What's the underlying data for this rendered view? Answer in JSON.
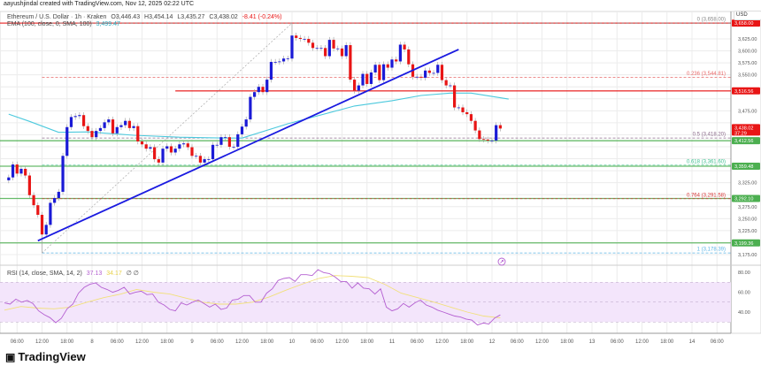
{
  "header": {
    "credit": "aayushjindal created with TradingView.com, Nov 12, 2025 02:22 UTC"
  },
  "legend": {
    "symbol": "Ethereum / U.S. Dollar · 1h · Kraken",
    "open": "O3,446.43",
    "high": "H3,454.14",
    "low": "L3,435.27",
    "close": "C3,438.02",
    "change": "-8.41 (-0.24%)",
    "ema_label": "EMA (100, close, 0, SMA, 100)",
    "ema_value": "3,499.47",
    "rsi_label": "RSI (14, close, SMA, 14, 2)",
    "rsi_value": "37.13",
    "rsi_sma_value": "34.17",
    "rsi_extra": "∅ ∅"
  },
  "currency": "USD",
  "brand": {
    "name": "TradingView",
    "logo": "tradingview-logo"
  },
  "colors": {
    "up": "#1a1ad6",
    "down": "#e81515",
    "ema": "#4cc9dd",
    "trendline": "#1a1ae0",
    "resistance": "#e81515",
    "support": "#4caf50",
    "rsi": "#b45fd1",
    "rsi_sma": "#f2e07a",
    "rsi_band": "#f3e5fb"
  },
  "chart_data": {
    "type": "candlestick",
    "interval": "1h",
    "first_candle": "2025-11-07 04:00",
    "closes": [
      3336,
      3363,
      3344,
      3354,
      3340,
      3299,
      3278,
      3258,
      3217,
      3237,
      3283,
      3293,
      3306,
      3381,
      3441,
      3462,
      3464,
      3466,
      3443,
      3433,
      3420,
      3433,
      3439,
      3451,
      3457,
      3428,
      3441,
      3445,
      3454,
      3439,
      3443,
      3411,
      3405,
      3396,
      3399,
      3374,
      3367,
      3396,
      3401,
      3388,
      3396,
      3405,
      3407,
      3399,
      3381,
      3381,
      3367,
      3374,
      3374,
      3404,
      3404,
      3420,
      3420,
      3400,
      3400,
      3426,
      3442,
      3457,
      3504,
      3514,
      3525,
      3514,
      3540,
      3577,
      3577,
      3578,
      3584,
      3584,
      3632,
      3627,
      3625,
      3625,
      3617,
      3606,
      3606,
      3606,
      3589,
      3623,
      3605,
      3605,
      3589,
      3612,
      3540,
      3517,
      3528,
      3552,
      3531,
      3555,
      3571,
      3539,
      3572,
      3565,
      3582,
      3578,
      3613,
      3603,
      3572,
      3546,
      3546,
      3544,
      3559,
      3554,
      3554,
      3571,
      3539,
      3528,
      3528,
      3482,
      3482,
      3472,
      3468,
      3454,
      3434,
      3416,
      3415,
      3413,
      3413,
      3445,
      3438.02
    ],
    "first_open": 3330,
    "extremes": [
      {
        "time": "2025-11-07 12:00",
        "low": 3178.39
      },
      {
        "time": "2025-11-10 00:00",
        "high": 3658.0
      }
    ],
    "ema100": [
      [
        "2025-11-07 04:00",
        3468
      ],
      [
        "2025-11-07 09:00",
        3453
      ],
      [
        "2025-11-07 16:00",
        3430
      ],
      [
        "2025-11-07 23:00",
        3431
      ],
      [
        "2025-11-08 10:00",
        3424
      ],
      [
        "2025-11-08 21:00",
        3420
      ],
      [
        "2025-11-09 08:00",
        3418
      ],
      [
        "2025-11-09 12:00",
        3418
      ],
      [
        "2025-11-09 23:00",
        3448
      ],
      [
        "2025-11-10 15:00",
        3485
      ],
      [
        "2025-11-11 00:00",
        3496
      ],
      [
        "2025-11-11 07:00",
        3507
      ],
      [
        "2025-11-11 14:00",
        3512
      ],
      [
        "2025-11-11 19:00",
        3512
      ],
      [
        "2025-11-12 04:00",
        3499.47
      ]
    ],
    "trendline": {
      "from": [
        "2025-11-07 11:00",
        3204
      ],
      "to": [
        "2025-11-11 16:00",
        3603
      ]
    },
    "fib_anchor_line": {
      "from": [
        "2025-11-07 12:00",
        3178.39
      ],
      "to": [
        "2025-11-10 00:00",
        3658.0
      ]
    },
    "fib_levels": [
      {
        "label": "0 (3,658.00)",
        "price": 3658.0,
        "color": "#888888"
      },
      {
        "label": "0.236 (3,544.81)",
        "price": 3544.81,
        "color": "#e86a6a"
      },
      {
        "label": "0.5 (3,418.20)",
        "price": 3418.2,
        "color": "#8a6a8a"
      },
      {
        "label": "0.618 (3,361.60)",
        "price": 3361.6,
        "color": "#3cbf8f"
      },
      {
        "label": "0.764 (3,291.58)",
        "price": 3291.58,
        "color": "#d93a3a"
      },
      {
        "label": "1 (3,178.39)",
        "price": 3178.39,
        "color": "#5ab4e6"
      }
    ],
    "horizontal_lines": [
      {
        "price": 3658.0,
        "label": "3,658.00",
        "color": "#e81515",
        "from": "2025-11-07 00:00"
      },
      {
        "price": 3516.56,
        "label": "3,516.56",
        "color": "#e81515",
        "from": "2025-11-08 20:00"
      },
      {
        "price": 3412.56,
        "label": "3,412.56",
        "color": "#4caf50",
        "from": "2025-11-07 00:00"
      },
      {
        "price": 3359.48,
        "label": "3,359.48",
        "color": "#4caf50",
        "from": "2025-11-07 00:00"
      },
      {
        "price": 3292.1,
        "label": "3,292.10",
        "color": "#4caf50",
        "from": "2025-11-07 00:00"
      },
      {
        "price": 3199.36,
        "label": "3,199.36",
        "color": "#4caf50",
        "from": "2025-11-07 00:00"
      }
    ],
    "last_price": {
      "label": "3,438.02",
      "countdown": "37:29",
      "price": 3438.02
    },
    "y_ticks": [
      "3,625.00",
      "3,600.00",
      "3,575.00",
      "3,550.00",
      "3,525.00",
      "3,500.00",
      "3,475.00",
      "3,450.00",
      "3,425.00",
      "3,400.00",
      "3,375.00",
      "3,350.00",
      "3,325.00",
      "3,300.00",
      "3,275.00",
      "3,250.00",
      "3,225.00",
      "3,200.00",
      "3,175.00"
    ],
    "ylim": [
      3150,
      3680
    ],
    "x_ticks": [
      "06:00",
      "12:00",
      "18:00",
      "8",
      "06:00",
      "12:00",
      "18:00",
      "9",
      "06:00",
      "12:00",
      "18:00",
      "10",
      "06:00",
      "12:00",
      "18:00",
      "11",
      "06:00",
      "12:00",
      "18:00",
      "12",
      "06:00",
      "12:00",
      "18:00",
      "13",
      "06:00",
      "12:00",
      "18:00",
      "14",
      "06:00"
    ],
    "rsi": {
      "values": [
        49.2,
        48,
        53,
        50,
        51.6,
        48.6,
        41.2,
        37.3,
        34.4,
        29.3,
        33.8,
        43.3,
        48,
        59,
        64.9,
        67.9,
        69.3,
        64.9,
        62.8,
        59.9,
        61.9,
        64.9,
        58.1,
        59.9,
        61,
        57.5,
        58.1,
        50,
        47.1,
        42.7,
        41.2,
        49.2,
        47.1,
        50,
        52.1,
        48.6,
        45,
        48,
        42.7,
        44.1,
        52.1,
        53,
        56.6,
        56.6,
        50,
        50,
        59,
        63.4,
        71.7,
        73.8,
        74.7,
        70.8,
        77.6,
        77.6,
        76.7,
        82.7,
        79.7,
        78.8,
        75.3,
        70.8,
        70.8,
        64,
        69.3,
        64,
        63.4,
        58.1,
        63.4,
        45,
        41.2,
        43.3,
        48.6,
        45,
        49.2,
        52.1,
        47.1,
        45,
        42,
        40,
        38,
        36,
        35,
        33,
        32,
        27,
        29,
        28,
        34,
        37.13
      ],
      "sma": [
        42,
        45.6,
        44,
        43.3,
        45,
        50,
        54.5,
        58,
        62.8,
        60,
        58.1,
        54,
        50,
        48,
        48,
        50,
        55,
        61.9,
        68,
        73.8,
        76.7,
        76,
        74.7,
        68,
        59,
        54.5,
        50,
        45,
        40,
        36,
        34.17
      ],
      "ticks": [
        "80.00",
        "60.00",
        "40.00"
      ],
      "bands": [
        70,
        50,
        30
      ]
    }
  }
}
